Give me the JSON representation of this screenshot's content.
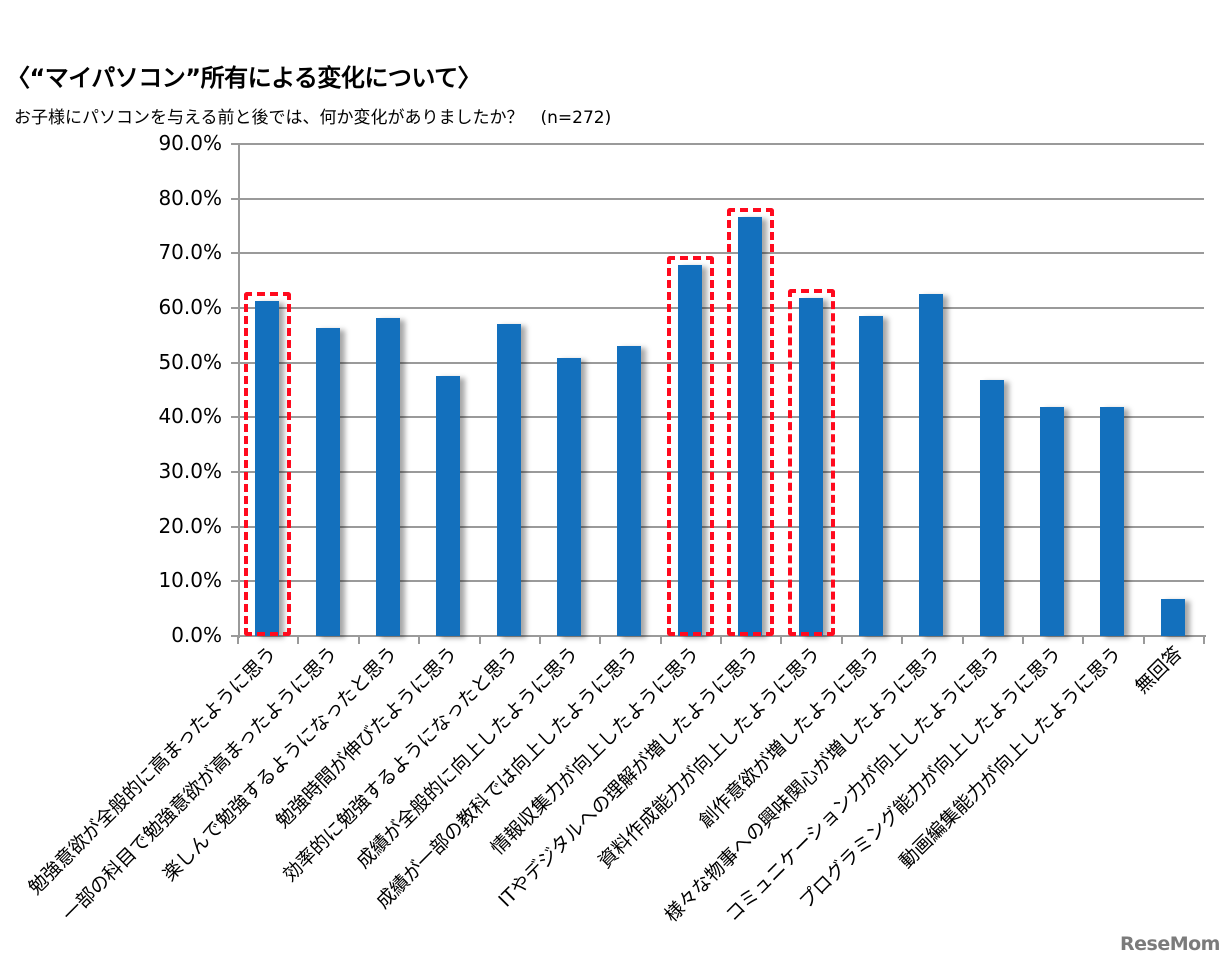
{
  "header": {
    "title": "〈“マイパソコン”所有による変化について〉",
    "subtitle": "お子様にパソコンを与える前と後では、何か変化がありましたか？　(n=272)"
  },
  "watermark": "ReseMom",
  "colors": {
    "bar": "#1370bd",
    "highlight": "#ff0a1e",
    "grid": "#9a9a9a"
  },
  "chart_data": {
    "type": "bar",
    "title": "〈“マイパソコン”所有による変化について〉",
    "subtitle": "お子様にパソコンを与える前と後では、何か変化がありましたか？　(n=272)",
    "xlabel": "",
    "ylabel": "",
    "ylim": [
      0,
      90
    ],
    "yticks": [
      "0.0%",
      "10.0%",
      "20.0%",
      "30.0%",
      "40.0%",
      "50.0%",
      "60.0%",
      "70.0%",
      "80.0%",
      "90.0%"
    ],
    "grid": true,
    "legend": null,
    "categories": [
      "勉強意欲が全般的に高まったように思う",
      "一部の科目で勉強意欲が高まったように思う",
      "楽しんで勉強するようになったと思う",
      "勉強時間が伸びたように思う",
      "効率的に勉強するようになったと思う",
      "成績が全般的に向上したように思う",
      "成績が一部の教科では向上したように思う",
      "情報収集力が向上したように思う",
      "ITやデジタルへの理解が増したように思う",
      "資料作成能力が向上したように思う",
      "創作意欲が増したように思う",
      "様々な物事への興味関心が増したように思う",
      "コミュニケーション力が向上したように思う",
      "プログラミング能力が向上したように思う",
      "動画編集能力が向上したように思う",
      "無回答"
    ],
    "values": [
      61.2,
      56.4,
      58.2,
      47.6,
      57.1,
      50.9,
      53.1,
      67.8,
      76.7,
      61.9,
      58.6,
      62.6,
      46.9,
      41.8,
      41.8,
      6.8
    ],
    "highlighted_indices": [
      0,
      7,
      8,
      9
    ],
    "unit": "%"
  }
}
